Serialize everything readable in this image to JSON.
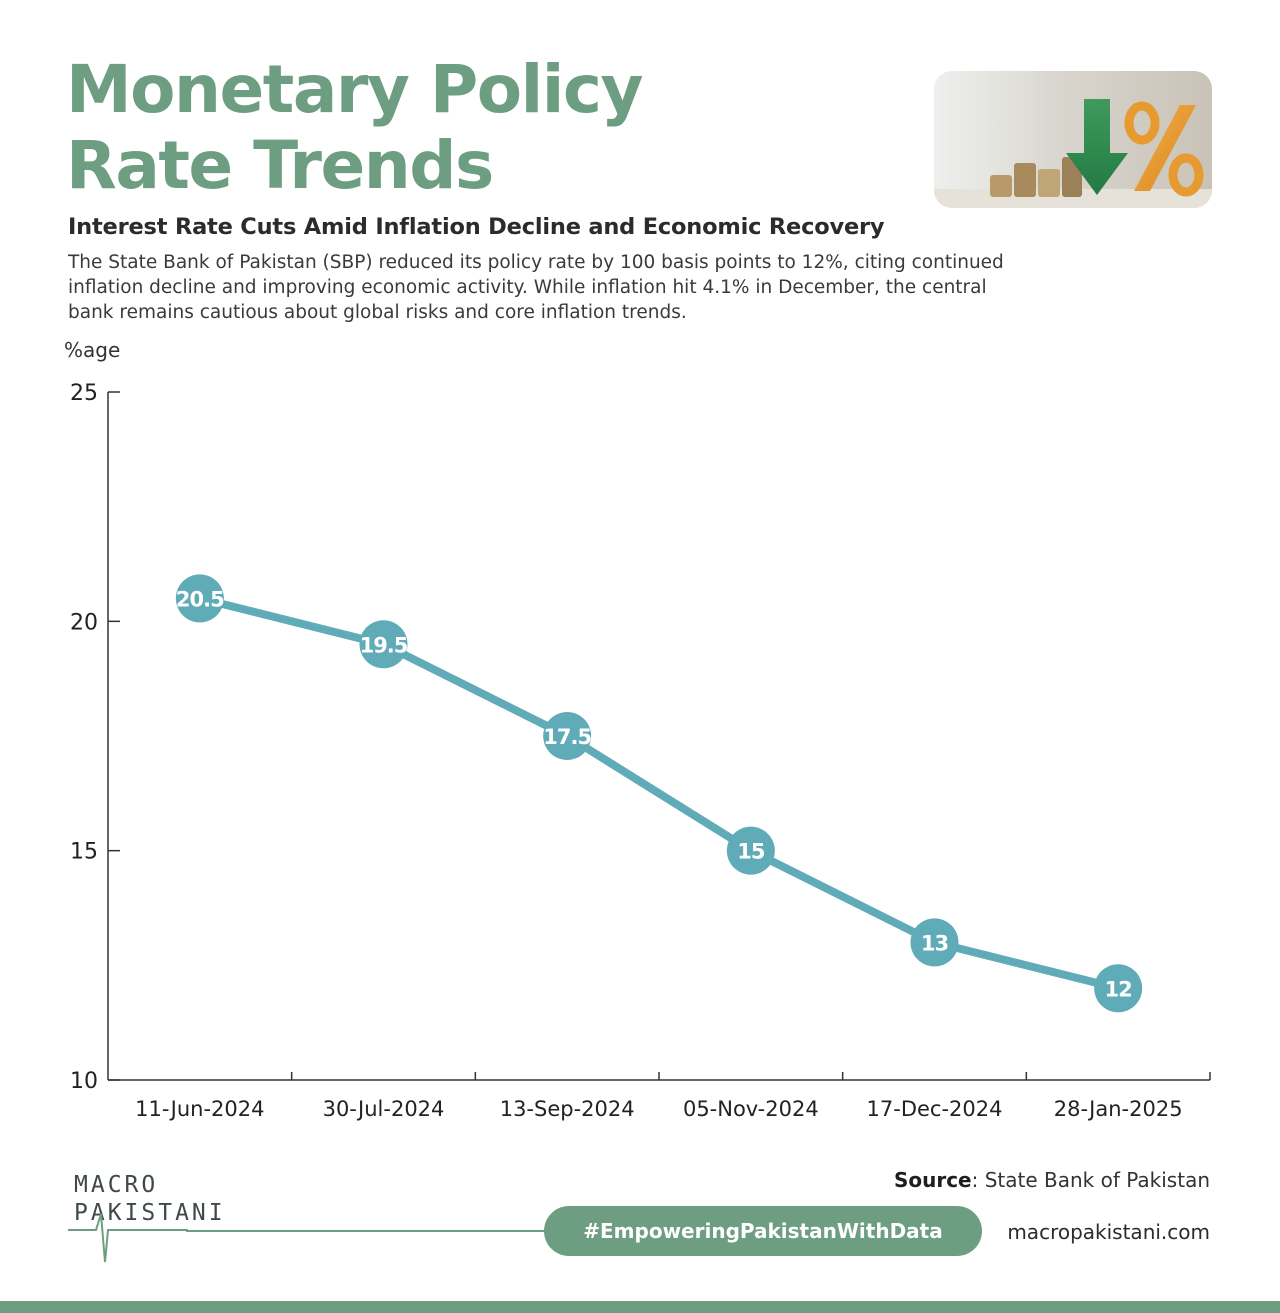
{
  "header": {
    "title_line1": "Monetary Policy",
    "title_line2": "Rate Trends",
    "subtitle": "Interest Rate Cuts Amid Inflation Decline and Economic Recovery",
    "description": "The State Bank of Pakistan (SBP) reduced its policy rate by 100 basis points to 12%, citing continued inflation decline and improving economic activity. While inflation hit 4.1% in December, the central bank remains cautious about global risks and core inflation trends."
  },
  "chart_data": {
    "type": "line",
    "title": "",
    "xlabel": "",
    "ylabel": "%age",
    "categories": [
      "11-Jun-2024",
      "30-Jul-2024",
      "13-Sep-2024",
      "05-Nov-2024",
      "17-Dec-2024",
      "28-Jan-2025"
    ],
    "values": [
      20.5,
      19.5,
      17.5,
      15,
      13,
      12
    ],
    "data_labels": [
      "20.5",
      "19.5",
      "17.5",
      "15",
      "13",
      "12"
    ],
    "ylim": [
      10,
      25
    ],
    "yticks": [
      10,
      15,
      20,
      25
    ],
    "grid": false,
    "legend": "none",
    "line_color": "#5fabb8",
    "marker_color": "#5fabb8"
  },
  "footer": {
    "source_label": "Source",
    "source_text": ": State Bank of Pakistan",
    "hashtag": "#EmpoweringPakistanWithData",
    "website": "macropakistani.com",
    "logo_line1": "MACRO",
    "logo_line2": "PAKISTANI"
  },
  "colors": {
    "accent": "#6e9e81",
    "series": "#5fabb8",
    "text_dark": "#2b2b2b"
  },
  "icons": {
    "header_image": "coins-percent-down-arrow-icon"
  }
}
